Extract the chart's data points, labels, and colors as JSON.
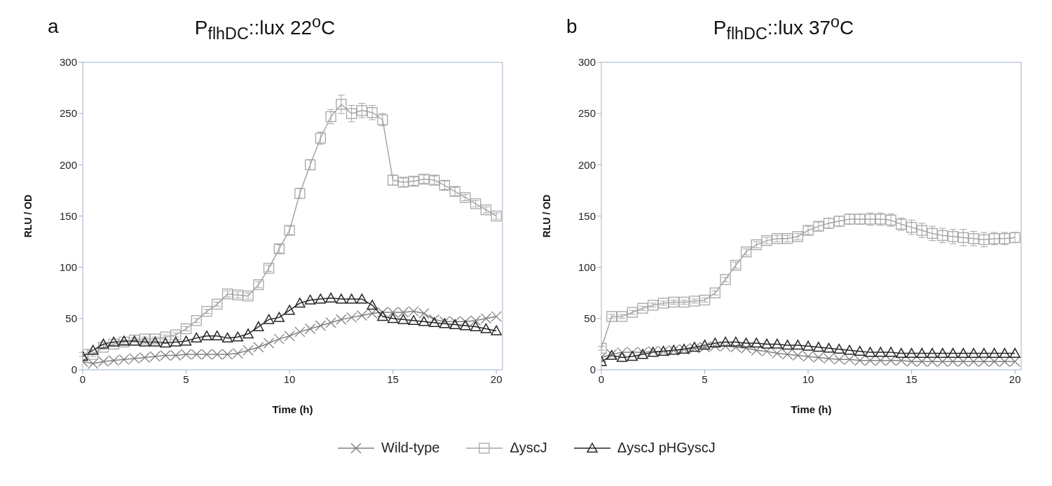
{
  "chart_data": [
    {
      "type": "line",
      "title": "P$_{flhDC}$::lux 22$^{o}$C",
      "annotations": [
        "a"
      ],
      "xlabel": "Time (h)",
      "ylabel": "RLU / OD",
      "xlim": [
        0,
        20.3
      ],
      "xticks": [
        0,
        5,
        10,
        15,
        20
      ],
      "ylim": [
        0,
        300
      ],
      "yticks": [
        0,
        50,
        100,
        150,
        200,
        250,
        300
      ],
      "legend": "bottom",
      "x": [
        0,
        0.5,
        1,
        1.5,
        2,
        2.5,
        3,
        3.5,
        4,
        4.5,
        5,
        5.5,
        6,
        6.5,
        7,
        7.5,
        8,
        8.5,
        9,
        9.5,
        10,
        10.5,
        11,
        11.5,
        12,
        12.5,
        13,
        13.5,
        14,
        14.5,
        15,
        15.5,
        16,
        16.5,
        17,
        17.5,
        18,
        18.5,
        19,
        19.5,
        20
      ],
      "series": [
        {
          "name": "Wild-type",
          "color": "#808080",
          "marker": "cross",
          "values": [
            8,
            6,
            8,
            9,
            10,
            11,
            12,
            13,
            14,
            14,
            15,
            15,
            15,
            15,
            15,
            16,
            19,
            22,
            26,
            30,
            33,
            37,
            40,
            43,
            46,
            49,
            51,
            53,
            55,
            56,
            56,
            56,
            57,
            55,
            49,
            47,
            47,
            47,
            48,
            50,
            52
          ]
        },
        {
          "name": "ΔyscJ",
          "color": "#a6a6a6",
          "marker": "square",
          "values": [
            15,
            15,
            22,
            25,
            27,
            29,
            30,
            30,
            32,
            34,
            40,
            48,
            57,
            64,
            74,
            73,
            72,
            83,
            99,
            118,
            136,
            172,
            200,
            226,
            247,
            259,
            250,
            253,
            251,
            244,
            185,
            183,
            184,
            186,
            185,
            180,
            174,
            168,
            162,
            156,
            150
          ],
          "errors": [
            2,
            2,
            2,
            2,
            2,
            2,
            2,
            2,
            2,
            2,
            2,
            2,
            2,
            2,
            3,
            3,
            3,
            3,
            3,
            4,
            4,
            5,
            5,
            6,
            7,
            9,
            8,
            7,
            7,
            6,
            5,
            4,
            4,
            4,
            4,
            4,
            4,
            3,
            3,
            3,
            3
          ]
        },
        {
          "name": "ΔyscJ pHGyscJ",
          "color": "#262626",
          "marker": "triangle",
          "values": [
            13,
            19,
            25,
            27,
            28,
            28,
            27,
            27,
            26,
            27,
            28,
            31,
            33,
            33,
            31,
            32,
            35,
            42,
            49,
            51,
            58,
            65,
            68,
            69,
            70,
            69,
            69,
            69,
            63,
            52,
            50,
            49,
            48,
            47,
            46,
            45,
            44,
            43,
            42,
            40,
            38
          ]
        }
      ]
    },
    {
      "type": "line",
      "title": "P$_{flhDC}$::lux 37$^{o}$C",
      "annotations": [
        "b"
      ],
      "xlabel": "Time (h)",
      "ylabel": "RLU / OD",
      "xlim": [
        0,
        20.3
      ],
      "xticks": [
        0,
        5,
        10,
        15,
        20
      ],
      "ylim": [
        0,
        300
      ],
      "yticks": [
        0,
        50,
        100,
        150,
        200,
        250,
        300
      ],
      "x": [
        0,
        0.5,
        1,
        1.5,
        2,
        2.5,
        3,
        3.5,
        4,
        4.5,
        5,
        5.5,
        6,
        6.5,
        7,
        7.5,
        8,
        8.5,
        9,
        9.5,
        10,
        10.5,
        11,
        11.5,
        12,
        12.5,
        13,
        13.5,
        14,
        14.5,
        15,
        15.5,
        16,
        16.5,
        17,
        17.5,
        18,
        18.5,
        19,
        19.5,
        20
      ],
      "series": [
        {
          "color": "#808080",
          "marker": "cross",
          "values": [
            12,
            15,
            17,
            17,
            17,
            18,
            18,
            19,
            20,
            21,
            22,
            23,
            23,
            22,
            21,
            19,
            18,
            16,
            15,
            14,
            13,
            12,
            11,
            10,
            10,
            9,
            9,
            9,
            9,
            9,
            8,
            8,
            8,
            8,
            8,
            8,
            8,
            8,
            8,
            8,
            8
          ]
        },
        {
          "color": "#a6a6a6",
          "marker": "square",
          "values": [
            21,
            52,
            52,
            56,
            60,
            63,
            65,
            66,
            66,
            67,
            68,
            75,
            88,
            102,
            115,
            122,
            126,
            128,
            128,
            130,
            136,
            140,
            143,
            145,
            147,
            147,
            147,
            147,
            146,
            142,
            139,
            136,
            133,
            131,
            130,
            129,
            128,
            127,
            128,
            128,
            129
          ],
          "errors": [
            2,
            2,
            2,
            2,
            2,
            2,
            2,
            2,
            2,
            2,
            2,
            2,
            2,
            3,
            3,
            3,
            3,
            3,
            3,
            3,
            4,
            4,
            5,
            5,
            5,
            5,
            6,
            6,
            6,
            6,
            7,
            7,
            7,
            7,
            7,
            8,
            7,
            7,
            6,
            6,
            5
          ]
        },
        {
          "color": "#262626",
          "marker": "triangle",
          "values": [
            8,
            14,
            12,
            13,
            15,
            17,
            18,
            19,
            20,
            22,
            24,
            26,
            27,
            27,
            26,
            26,
            25,
            25,
            24,
            24,
            23,
            22,
            21,
            20,
            19,
            18,
            17,
            17,
            17,
            16,
            16,
            16,
            16,
            16,
            16,
            16,
            16,
            16,
            16,
            16,
            16
          ]
        }
      ]
    }
  ]
}
